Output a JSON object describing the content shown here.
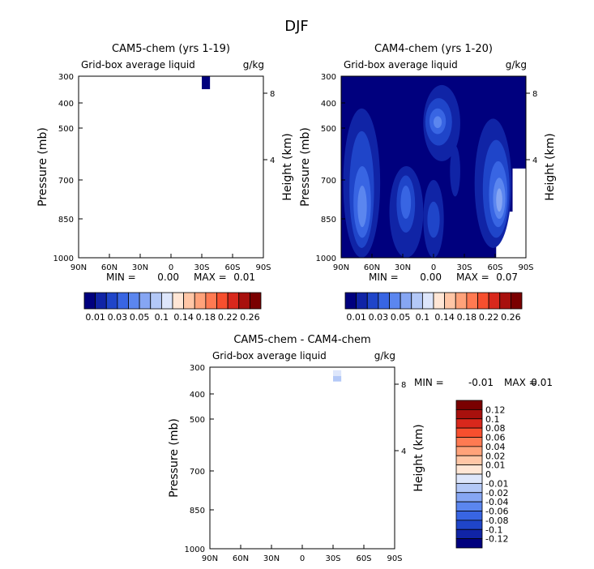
{
  "page": {
    "title": "DJF"
  },
  "colors": {
    "lev0": "#00007e",
    "lev1": "#1024a6",
    "lev2": "#1f45c9",
    "lev3": "#3865e3",
    "lev4": "#5b86ef",
    "lev5": "#86a6f3"
  },
  "chart_data": [
    {
      "type": "heatmap",
      "title": "CAM5-chem (yrs 1-19)",
      "subtitle_left": "Grid-box average liquid",
      "subtitle_right": "g/kg",
      "ylabel": "Pressure (mb)",
      "ylabel_right": "Height (km)",
      "x_ticks": [
        "90N",
        "60N",
        "30N",
        "0",
        "30S",
        "60S",
        "90S"
      ],
      "y_ticks": [
        "300",
        "400",
        "500",
        "700",
        "850",
        "1000"
      ],
      "y_ticks_right": [
        "8",
        "4"
      ],
      "min_label": "MIN =",
      "min_value": "0.00",
      "max_label": "MAX =",
      "max_value": "0.01",
      "colorbar_labels": [
        "0.01",
        "0.03",
        "0.05",
        "0.1",
        "0.14",
        "0.18",
        "0.22",
        "0.26"
      ],
      "colorbar_colors": [
        "#00007e",
        "#1024a6",
        "#1f45c9",
        "#3865e3",
        "#5b86ef",
        "#86a6f3",
        "#b3c8f7",
        "#dde6fb",
        "#ffe6d5",
        "#ffc6a6",
        "#ffa27a",
        "#ff7a52",
        "#f74f2e",
        "#d8281c",
        "#a8100d",
        "#7a0000"
      ],
      "patches": [
        {
          "lat": [
            -38,
            -30
          ],
          "p": [
            300,
            345
          ],
          "level": 0
        }
      ]
    },
    {
      "type": "heatmap",
      "title": "CAM4-chem (yrs 1-20)",
      "subtitle_left": "Grid-box average liquid",
      "subtitle_right": "g/kg",
      "ylabel": "Pressure (mb)",
      "ylabel_right": "Height (km)",
      "x_ticks": [
        "90N",
        "60N",
        "30N",
        "0",
        "30S",
        "60S",
        "90S"
      ],
      "y_ticks": [
        "300",
        "400",
        "500",
        "700",
        "850",
        "1000"
      ],
      "y_ticks_right": [
        "8",
        "4"
      ],
      "min_label": "MIN =",
      "min_value": "0.00",
      "max_label": "MAX =",
      "max_value": "0.07",
      "colorbar_labels": [
        "0.01",
        "0.03",
        "0.05",
        "0.1",
        "0.14",
        "0.18",
        "0.22",
        "0.26"
      ],
      "colorbar_colors": [
        "#00007e",
        "#1024a6",
        "#1f45c9",
        "#3865e3",
        "#5b86ef",
        "#86a6f3",
        "#b3c8f7",
        "#dde6fb",
        "#ffe6d5",
        "#ffc6a6",
        "#ffa27a",
        "#ff7a52",
        "#f74f2e",
        "#d8281c",
        "#a8100d",
        "#7a0000"
      ],
      "patches": [
        {
          "lat": [
            -90,
            90
          ],
          "p": [
            300,
            1000
          ],
          "level": 0
        },
        {
          "lat": [
            -90,
            -77
          ],
          "p": [
            650,
            1000
          ],
          "level": -1
        },
        {
          "lat": [
            -90,
            -61
          ],
          "p": [
            900,
            1000
          ],
          "level": -1
        },
        {
          "lat": [
            -90,
            -68
          ],
          "p": [
            820,
            1000
          ],
          "level": -1
        },
        {
          "lat": [
            52,
            88
          ],
          "p": [
            420,
            1000
          ],
          "level": 1
        },
        {
          "lat": [
            58,
            82
          ],
          "p": [
            510,
            960
          ],
          "level": 2
        },
        {
          "lat": [
            61,
            78
          ],
          "p": [
            640,
            920
          ],
          "level": 3
        },
        {
          "lat": [
            65,
            74
          ],
          "p": [
            720,
            880
          ],
          "level": 4
        },
        {
          "lat": [
            10,
            43
          ],
          "p": [
            640,
            1000
          ],
          "level": 1
        },
        {
          "lat": [
            18,
            36
          ],
          "p": [
            680,
            900
          ],
          "level": 2
        },
        {
          "lat": [
            22,
            32
          ],
          "p": [
            720,
            850
          ],
          "level": 3
        },
        {
          "lat": [
            -26,
            10
          ],
          "p": [
            330,
            620
          ],
          "level": 1
        },
        {
          "lat": [
            -18,
            8
          ],
          "p": [
            380,
            560
          ],
          "level": 2
        },
        {
          "lat": [
            -12,
            4
          ],
          "p": [
            420,
            520
          ],
          "level": 3
        },
        {
          "lat": [
            -8,
            0
          ],
          "p": [
            450,
            500
          ],
          "level": 4
        },
        {
          "lat": [
            -10,
            10
          ],
          "p": [
            700,
            1000
          ],
          "level": 1
        },
        {
          "lat": [
            -6,
            6
          ],
          "p": [
            780,
            920
          ],
          "level": 2
        },
        {
          "lat": [
            -26,
            -16
          ],
          "p": [
            560,
            760
          ],
          "level": 1
        },
        {
          "lat": [
            -76,
            -40
          ],
          "p": [
            460,
            960
          ],
          "level": 1
        },
        {
          "lat": [
            -74,
            -48
          ],
          "p": [
            540,
            920
          ],
          "level": 2
        },
        {
          "lat": [
            -72,
            -54
          ],
          "p": [
            620,
            880
          ],
          "level": 3
        },
        {
          "lat": [
            -70,
            -58
          ],
          "p": [
            690,
            850
          ],
          "level": 4
        },
        {
          "lat": [
            -67,
            -61
          ],
          "p": [
            730,
            820
          ],
          "level": 5
        }
      ]
    },
    {
      "type": "heatmap",
      "title": "CAM5-chem - CAM4-chem",
      "subtitle_left": "Grid-box average liquid",
      "subtitle_right": "g/kg",
      "ylabel": "Pressure (mb)",
      "ylabel_right": "Height (km)",
      "x_ticks": [
        "90N",
        "60N",
        "30N",
        "0",
        "30S",
        "60S",
        "90S"
      ],
      "y_ticks": [
        "300",
        "400",
        "500",
        "700",
        "850",
        "1000"
      ],
      "y_ticks_right": [
        "8",
        "4"
      ],
      "min_label": "MIN =",
      "min_value": "-0.01",
      "max_label": "MAX =",
      "max_value": "0.01",
      "colorbar_labels": [
        "0.12",
        "0.1",
        "0.08",
        "0.06",
        "0.04",
        "0.02",
        "0.01",
        "0",
        "-0.01",
        "-0.02",
        "-0.04",
        "-0.06",
        "-0.08",
        "-0.1",
        "-0.12"
      ],
      "colorbar_colors": [
        "#7a0000",
        "#a8100d",
        "#d8281c",
        "#f74f2e",
        "#ff7a52",
        "#ffa27a",
        "#ffc6a6",
        "#ffe6d5",
        "#dde6fb",
        "#b3c8f7",
        "#86a6f3",
        "#5b86ef",
        "#3865e3",
        "#1f45c9",
        "#1024a6",
        "#00007e"
      ],
      "patches": [
        {
          "lat": [
            -38,
            -30
          ],
          "p": [
            310,
            330
          ],
          "level": 8
        },
        {
          "lat": [
            -38,
            -30
          ],
          "p": [
            330,
            350
          ],
          "level": 9
        }
      ]
    }
  ]
}
